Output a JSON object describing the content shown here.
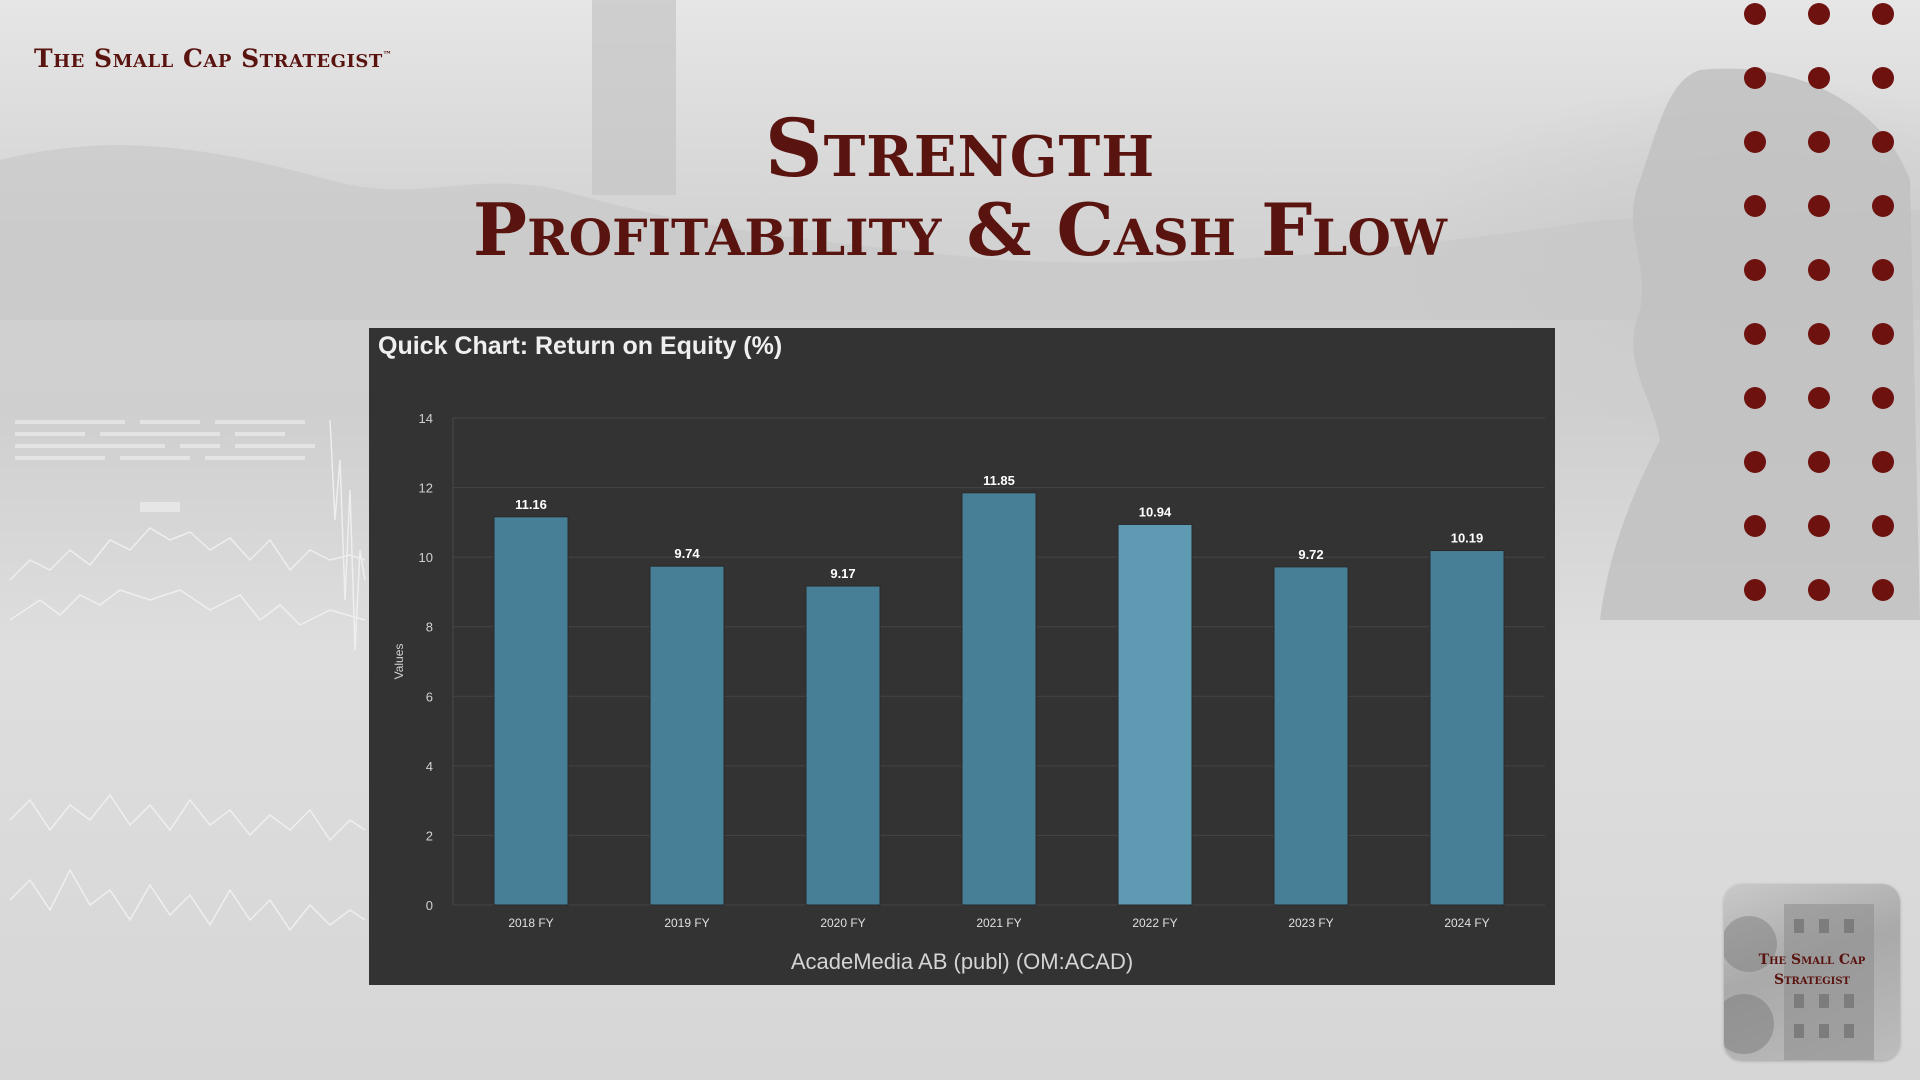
{
  "brand": {
    "name": "The Small Cap Strategist",
    "tm": "™"
  },
  "title": {
    "line1": "Strength",
    "line2": "Profitability & Cash Flow"
  },
  "logo": {
    "line1": "The Small Cap",
    "line2": "Strategist"
  },
  "colors": {
    "brand": "#5a1410",
    "dots": "#6e1210",
    "panel": "#333333",
    "bar": "#477f96",
    "bar_highlight": "#5e9bb3"
  },
  "chart_data": {
    "type": "bar",
    "title": "Quick Chart: Return on Equity (%)",
    "subtitle": "AcadeMedia AB (publ) (OM:ACAD)",
    "xlabel": "",
    "ylabel": "Values",
    "categories": [
      "2018 FY",
      "2019 FY",
      "2020 FY",
      "2021 FY",
      "2022 FY",
      "2023 FY",
      "2024 FY"
    ],
    "values": [
      11.16,
      9.74,
      9.17,
      11.85,
      10.94,
      9.72,
      10.19
    ],
    "value_labels": [
      "11.16",
      "9.74",
      "9.17",
      "11.85",
      "10.94",
      "9.72",
      "10.19"
    ],
    "yticks": [
      "0",
      "2",
      "4",
      "6",
      "8",
      "10",
      "12",
      "14"
    ],
    "ylim": [
      0,
      14
    ],
    "grid": true,
    "legend": "none"
  }
}
